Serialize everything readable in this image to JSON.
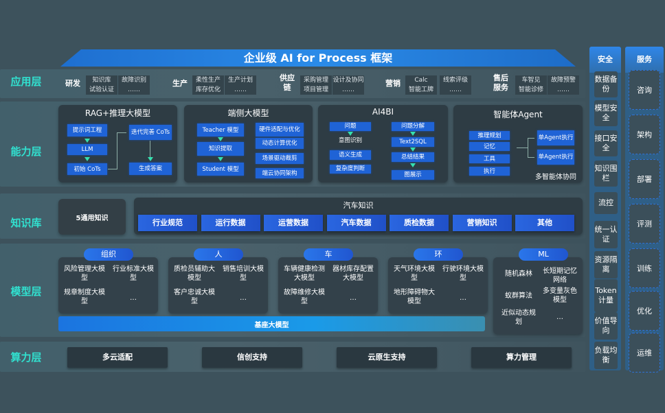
{
  "title": "企业级 AI for Process 框架",
  "layers": {
    "app": "应用层",
    "capability": "能力层",
    "knowledge": "知识库",
    "model": "模型层",
    "compute": "算力层"
  },
  "app_sections": [
    {
      "name": "研发",
      "items": [
        "知识库",
        "故障识别",
        "试验认证",
        "……"
      ]
    },
    {
      "name": "生产",
      "items": [
        "柔性生产",
        "生产计划",
        "库存优化",
        "……"
      ]
    },
    {
      "name": "供应链",
      "items": [
        "采购管理",
        "设计及协同",
        "项目管理",
        "……"
      ]
    },
    {
      "name": "营销",
      "items": [
        "Calc",
        "线索评级",
        "智能工牌",
        "……"
      ]
    },
    {
      "name": "售后服务",
      "items": [
        "车智见",
        "故障预警",
        "智能诊修",
        "……"
      ]
    }
  ],
  "capability": {
    "rag": {
      "title": "RAG+推理大模型",
      "items": [
        "提示词工程",
        "LLM",
        "初始 CoTs",
        "迭代完善 CoTs",
        "生成答案"
      ]
    },
    "edge": {
      "title": "端侧大模型",
      "items": [
        "Teacher 模型",
        "知识提取",
        "Student 模型",
        "硬件适配与优化",
        "动态计算优化",
        "场景驱动裁剪",
        "端云协同架构"
      ]
    },
    "ai4bi": {
      "title": "AI4BI",
      "items": [
        "问题",
        "意图识别",
        "语义生成",
        "复杂度判断",
        "问题分解",
        "Text2SQL",
        "总结结果",
        "图展示"
      ]
    },
    "agent": {
      "title": "智能体Agent",
      "items": [
        "推理规划",
        "记忆",
        "工具",
        "执行",
        "单Agent执行",
        "单Agent执行"
      ],
      "footer": "多智能体协同"
    }
  },
  "knowledge": {
    "general": "5通用知识",
    "auto_title": "汽车知识",
    "items": [
      "行业规范",
      "运行数据",
      "运营数据",
      "汽车数据",
      "质检数据",
      "营销知识",
      "其他"
    ]
  },
  "model_groups": [
    {
      "name": "组织",
      "items": [
        "风险管理大模型",
        "行业标准大模型",
        "规章制度大模型",
        "…"
      ]
    },
    {
      "name": "人",
      "items": [
        "质检员辅助大模型",
        "销售培训大模型",
        "客户忠诚大模型",
        "…"
      ]
    },
    {
      "name": "车",
      "items": [
        "车辆健康检测大模型",
        "器材库存配置大模型",
        "故障维修大模型",
        "…"
      ]
    },
    {
      "name": "环",
      "items": [
        "天气环境大模型",
        "行驶环境大模型",
        "地形障碍物大模型",
        "…"
      ]
    },
    {
      "name": "ML",
      "items": [
        "随机森林",
        "长短期记忆网络",
        "蚁群算法",
        "多变量灰色模型",
        "近似动态规划",
        "…"
      ]
    }
  ],
  "foundation": "基座大模型",
  "compute": [
    "多云适配",
    "信创支持",
    "云原生支持",
    "算力管理"
  ],
  "security": {
    "title": "安全",
    "items": [
      "数据备份",
      "模型安全",
      "接口安全",
      "知识围栏",
      "流控",
      "统一认证",
      "资源隔离",
      "Token计量",
      "价值导向",
      "负载均衡"
    ]
  },
  "service": {
    "title": "服务",
    "items": [
      "咨询",
      "架构",
      "部署",
      "评测",
      "训练",
      "优化",
      "运维"
    ]
  },
  "colors": {
    "background": "#3d525c",
    "accent_blue": "#1f63d6",
    "layer_label": "#31e0cf",
    "arrow": "#35e0b0"
  }
}
